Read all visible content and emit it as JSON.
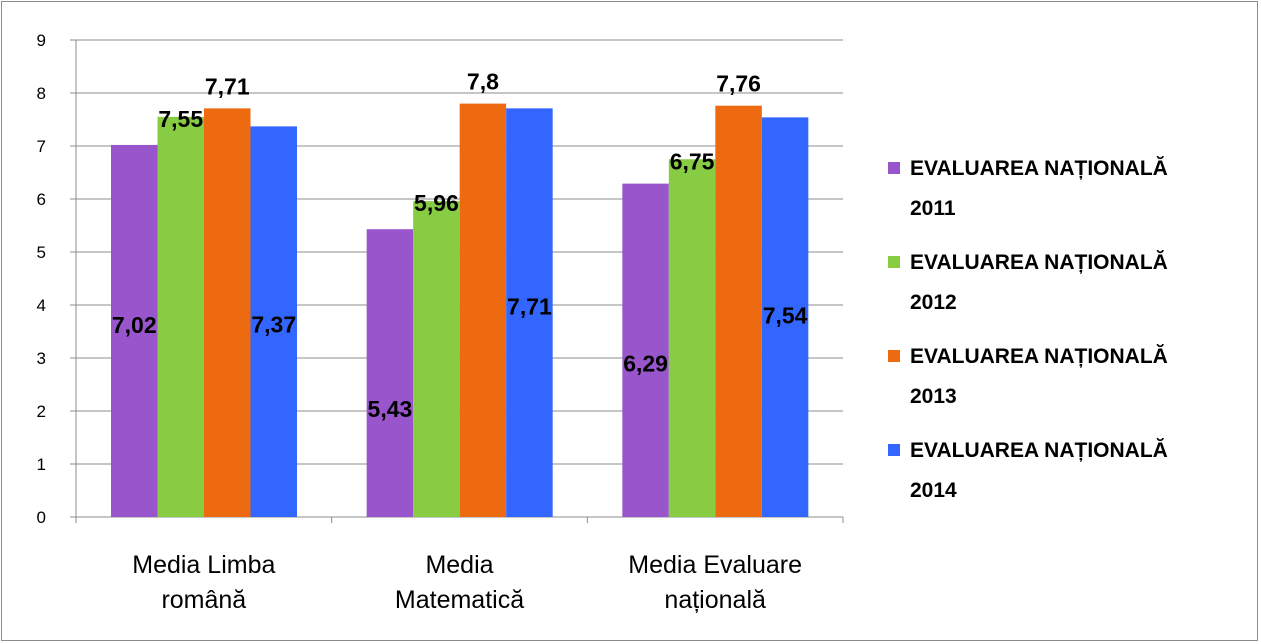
{
  "chart_data": {
    "type": "bar",
    "categories": [
      [
        "Media Limba",
        "română"
      ],
      [
        "Media",
        "Matematică"
      ],
      [
        "Media Evaluare",
        "națională"
      ]
    ],
    "series": [
      {
        "name": [
          "EVALUAREA NAȚIONALĂ",
          "2011"
        ],
        "color": "#9955cc",
        "values": [
          7.02,
          5.43,
          6.29
        ],
        "labels": [
          "7,02",
          "5,43",
          "6,29"
        ]
      },
      {
        "name": [
          "EVALUAREA NAȚIONALĂ",
          "2012"
        ],
        "color": "#88cc44",
        "values": [
          7.55,
          5.96,
          6.75
        ],
        "labels": [
          "7,55",
          "5,96",
          "6,75"
        ]
      },
      {
        "name": [
          "EVALUAREA NAȚIONALĂ",
          "2013"
        ],
        "color": "#ee6a10",
        "values": [
          7.71,
          7.8,
          7.76
        ],
        "labels": [
          "7,71",
          "7,8",
          "7,76"
        ]
      },
      {
        "name": [
          "EVALUAREA NAȚIONALĂ",
          "2014"
        ],
        "color": "#3366ff",
        "values": [
          7.37,
          7.71,
          7.54
        ],
        "labels": [
          "7,37",
          "7,71",
          "7,54"
        ]
      }
    ],
    "yticks": [
      "0",
      "1",
      "2",
      "3",
      "4",
      "5",
      "6",
      "7",
      "8",
      "9"
    ],
    "ylim": [
      0,
      9
    ],
    "grid": true,
    "legend": "right"
  }
}
